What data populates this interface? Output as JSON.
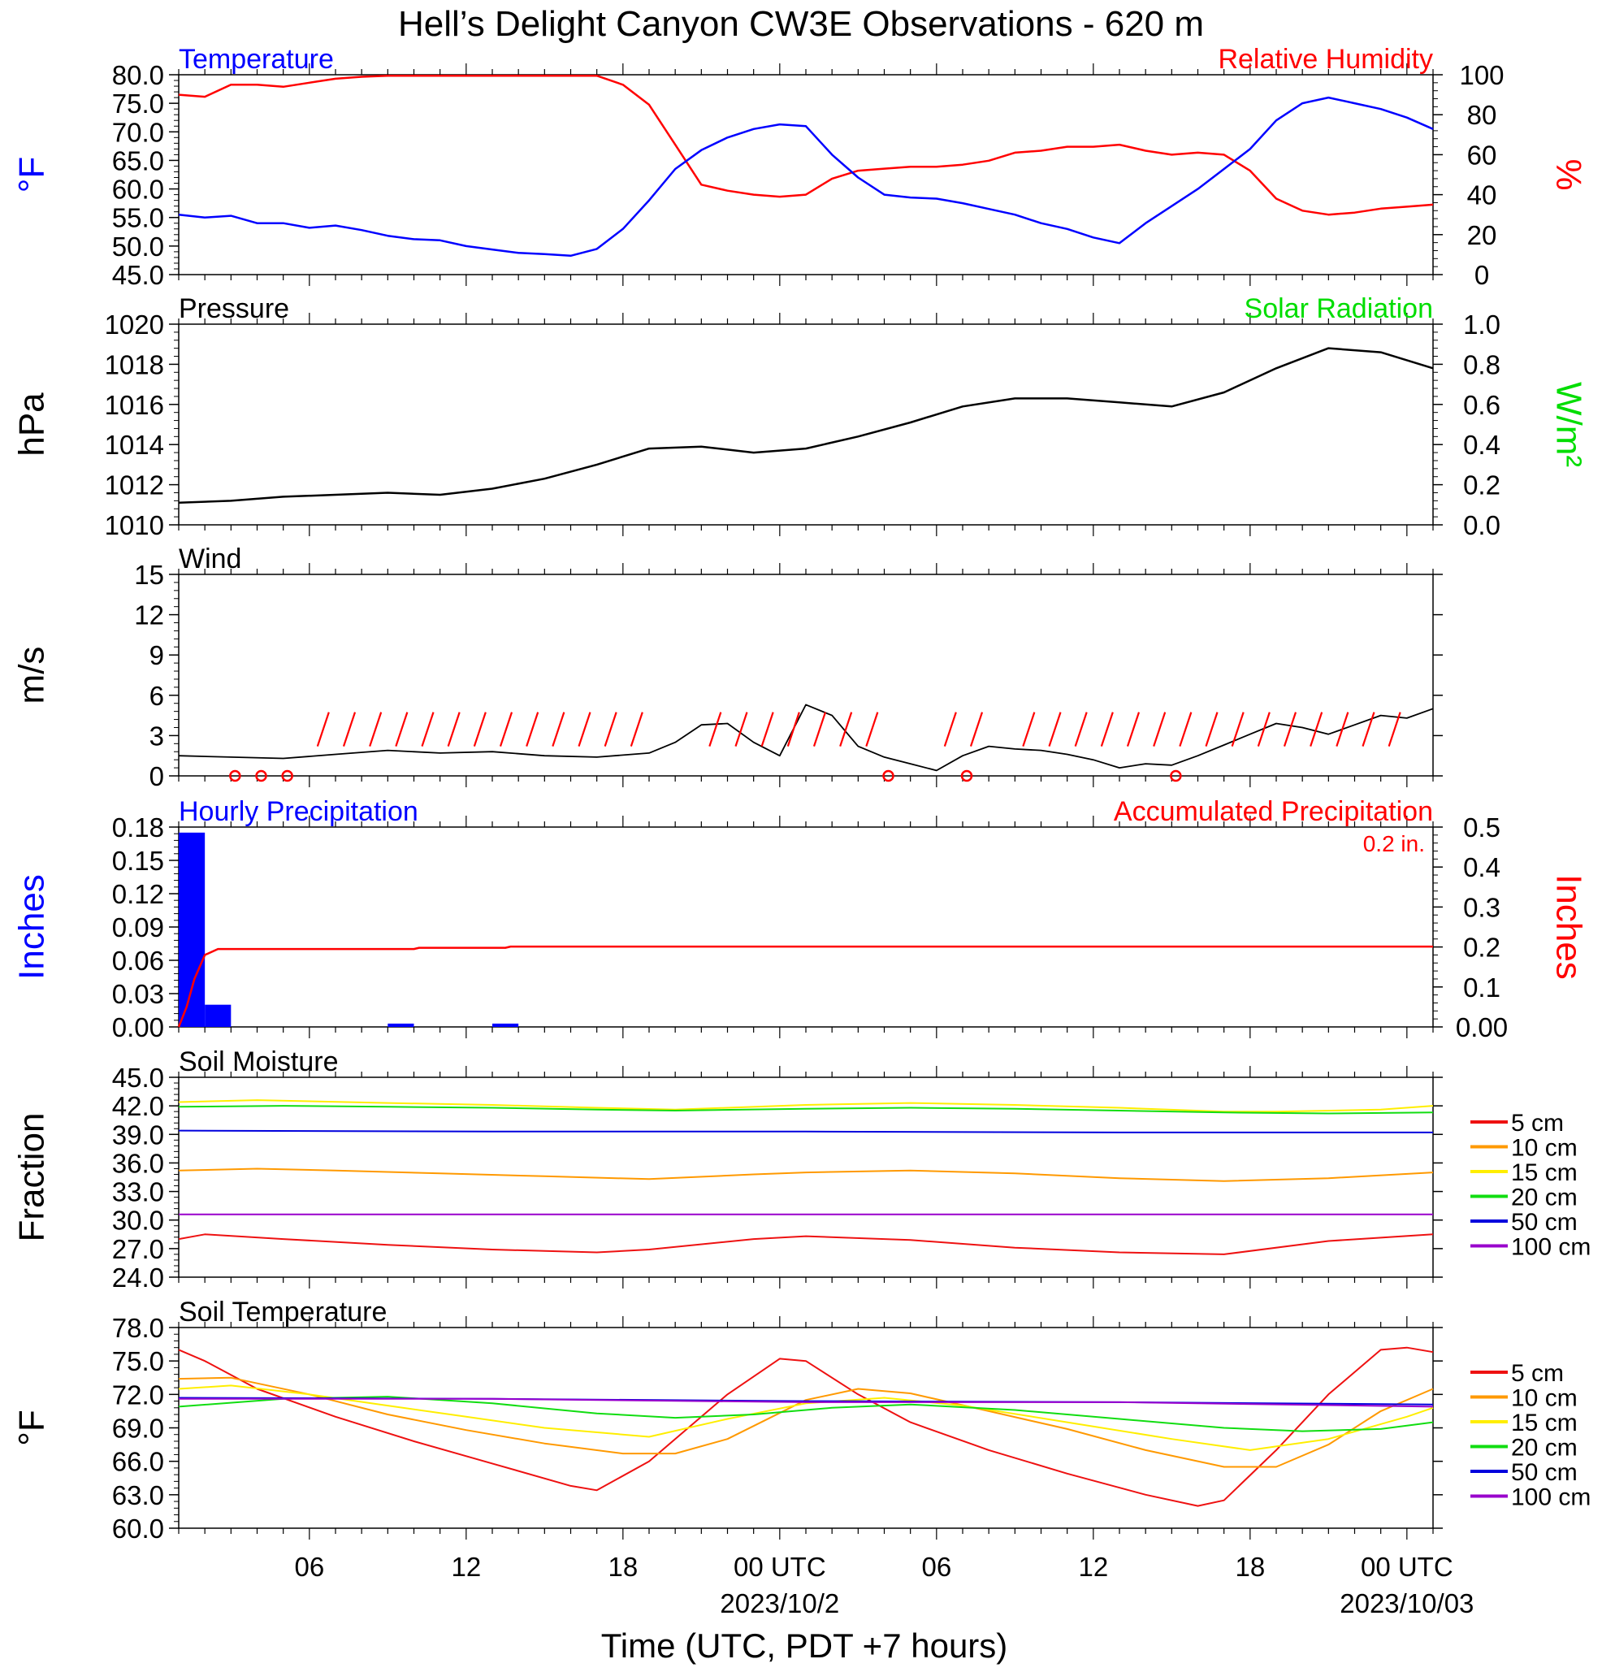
{
  "title": "Hell’s Delight Canyon CW3E Observations - 620 m",
  "x_axis": {
    "tick_labels": [
      "06",
      "12",
      "18",
      "00 UTC",
      "06",
      "12",
      "18",
      "00 UTC"
    ],
    "date_labels": [
      "2023/10/2",
      "2023/10/03"
    ],
    "xlabel": "Time (UTC, PDT +7 hours)"
  },
  "colors": {
    "temperature": "#0000ff",
    "humidity": "#ff0000",
    "pressure": "#000000",
    "solar": "#00dd00",
    "wind": "#000000",
    "barb": "#ff0000",
    "hourly_precip": "#0000ff",
    "accum_precip": "#ff0000",
    "5cm": "#ee1111",
    "10cm": "#ff9900",
    "15cm": "#ffee00",
    "20cm": "#11dd11",
    "50cm": "#0000dd",
    "100cm": "#9900cc"
  },
  "panels": {
    "temp_rh": {
      "left_title": "Temperature",
      "right_title": "Relative Humidity",
      "left_unit": "°F",
      "right_unit": "%",
      "left_ticks": [
        "80.0",
        "75.0",
        "70.0",
        "65.0",
        "60.0",
        "55.0",
        "50.0",
        "45.0"
      ],
      "right_ticks": [
        "100",
        "80",
        "60",
        "40",
        "20",
        "0"
      ]
    },
    "pressure": {
      "left_title": "Pressure",
      "right_title": "Solar Radiation",
      "left_unit": "hPa",
      "right_unit": "W/m²",
      "left_ticks": [
        "1020",
        "1018",
        "1016",
        "1014",
        "1012",
        "1010"
      ],
      "right_ticks": [
        "1.0",
        "0.8",
        "0.6",
        "0.4",
        "0.2",
        "0.0"
      ]
    },
    "wind": {
      "left_title": "Wind",
      "left_unit": "m/s",
      "left_ticks": [
        "15",
        "12",
        "9",
        "6",
        "3",
        "0"
      ]
    },
    "precip": {
      "left_title": "Hourly Precipitation",
      "right_title": "Accumulated Precipitation",
      "left_unit": "Inches",
      "right_unit": "Inches",
      "total_label": "0.2 in.",
      "left_ticks": [
        "0.18",
        "0.15",
        "0.12",
        "0.09",
        "0.06",
        "0.03",
        "0.00"
      ],
      "right_ticks": [
        "0.5",
        "0.4",
        "0.3",
        "0.2",
        "0.1",
        "0.00"
      ]
    },
    "soil_moisture": {
      "left_title": "Soil Moisture",
      "left_unit": "Fraction",
      "left_ticks": [
        "45.0",
        "42.0",
        "39.0",
        "36.0",
        "33.0",
        "30.0",
        "27.0",
        "24.0"
      ],
      "legend": [
        "5 cm",
        "10 cm",
        "15 cm",
        "20 cm",
        "50 cm",
        "100 cm"
      ]
    },
    "soil_temp": {
      "left_title": "Soil Temperature",
      "left_unit": "°F",
      "left_ticks": [
        "78.0",
        "75.0",
        "72.0",
        "69.0",
        "66.0",
        "63.0",
        "60.0"
      ],
      "legend": [
        "5 cm",
        "10 cm",
        "15 cm",
        "20 cm",
        "50 cm",
        "100 cm"
      ]
    }
  },
  "chart_data": [
    {
      "type": "line",
      "title": "Temperature",
      "x_hours_from_2023-10-01T01Z": [
        0,
        3,
        6,
        9,
        12,
        15,
        18,
        21,
        24,
        27,
        30,
        33,
        36,
        39,
        42,
        45,
        48
      ],
      "ylim": [
        45,
        80
      ],
      "ylabel": "°F",
      "series": [
        {
          "name": "Temperature",
          "x": [
            0,
            1,
            2,
            3,
            4,
            5,
            6,
            7,
            8,
            9,
            10,
            11,
            12,
            13,
            14,
            15,
            16,
            17,
            18,
            19,
            20,
            21,
            22,
            23,
            24,
            25,
            26,
            27,
            28,
            29,
            30,
            31,
            32,
            33,
            34,
            35,
            36,
            37,
            38,
            39,
            40,
            41,
            42,
            43,
            44,
            45,
            46,
            47,
            48
          ],
          "values": [
            55.5,
            55.0,
            55.3,
            54.0,
            54.0,
            53.2,
            53.6,
            52.8,
            51.8,
            51.2,
            51.0,
            50.0,
            49.4,
            48.8,
            48.6,
            48.3,
            49.5,
            53.0,
            58.0,
            63.5,
            66.8,
            69.0,
            70.5,
            71.3,
            71.0,
            66.0,
            62.0,
            59.0,
            58.5,
            58.3,
            57.5,
            56.5,
            55.5,
            54.0,
            53.0,
            51.5,
            50.5,
            54.0,
            57.0,
            60.0,
            63.5,
            67.0,
            72.0,
            75.0,
            76.0,
            75.0,
            74.0,
            72.5,
            70.5
          ]
        }
      ]
    },
    {
      "type": "line",
      "title": "Relative Humidity",
      "ylim": [
        0,
        100
      ],
      "ylabel": "%",
      "series": [
        {
          "name": "Relative Humidity",
          "x": [
            0,
            1,
            2,
            3,
            4,
            5,
            6,
            7,
            8,
            9,
            10,
            11,
            12,
            13,
            14,
            15,
            16,
            17,
            18,
            19,
            20,
            21,
            22,
            23,
            24,
            25,
            26,
            27,
            28,
            29,
            30,
            31,
            32,
            33,
            34,
            35,
            36,
            37,
            38,
            39,
            40,
            41,
            42,
            43,
            44,
            45,
            46,
            47,
            48
          ],
          "values": [
            90,
            89,
            95,
            95,
            94,
            96,
            98,
            99,
            99.5,
            99.5,
            99.5,
            99.5,
            99.5,
            99.5,
            99.5,
            99.5,
            99.5,
            95,
            85,
            65,
            45,
            42,
            40,
            39,
            40,
            48,
            52,
            53,
            54,
            54,
            55,
            57,
            61,
            62,
            64,
            64,
            65,
            62,
            60,
            61,
            60,
            52,
            38,
            32,
            30,
            31,
            33,
            34,
            35
          ]
        }
      ]
    },
    {
      "type": "line",
      "title": "Pressure",
      "ylim": [
        1010,
        1020
      ],
      "ylabel": "hPa",
      "series": [
        {
          "name": "Pressure",
          "x": [
            0,
            2,
            4,
            6,
            8,
            10,
            12,
            14,
            16,
            18,
            20,
            22,
            24,
            26,
            28,
            30,
            32,
            34,
            36,
            38,
            40,
            42,
            44,
            46,
            48
          ],
          "values": [
            1011.1,
            1011.2,
            1011.4,
            1011.5,
            1011.6,
            1011.5,
            1011.8,
            1012.3,
            1013.0,
            1013.8,
            1013.9,
            1013.6,
            1013.8,
            1014.4,
            1015.1,
            1015.9,
            1016.3,
            1016.3,
            1016.1,
            1015.9,
            1016.6,
            1017.8,
            1018.8,
            1018.6,
            1017.8
          ]
        }
      ]
    },
    {
      "type": "line",
      "title": "Wind",
      "ylim": [
        0,
        15
      ],
      "ylabel": "m/s",
      "series": [
        {
          "name": "Wind speed",
          "x": [
            0,
            2,
            4,
            6,
            8,
            10,
            12,
            14,
            16,
            18,
            19,
            20,
            21,
            22,
            23,
            24,
            25,
            26,
            27,
            28,
            29,
            30,
            31,
            32,
            33,
            34,
            35,
            36,
            37,
            38,
            39,
            40,
            41,
            42,
            43,
            44,
            45,
            46,
            47,
            48
          ],
          "values": [
            1.5,
            1.4,
            1.3,
            1.6,
            1.9,
            1.7,
            1.8,
            1.5,
            1.4,
            1.7,
            2.5,
            3.8,
            3.9,
            2.5,
            1.5,
            5.3,
            4.5,
            2.2,
            1.4,
            0.9,
            0.4,
            1.5,
            2.2,
            2.0,
            1.9,
            1.6,
            1.2,
            0.6,
            0.9,
            0.8,
            1.5,
            2.3,
            3.1,
            3.9,
            3.6,
            3.1,
            3.8,
            4.5,
            4.3,
            5.0
          ]
        }
      ]
    },
    {
      "type": "bar",
      "title": "Hourly Precipitation",
      "ylim": [
        0,
        0.18
      ],
      "ylabel": "Inches",
      "series": [
        {
          "name": "Hourly Precipitation",
          "x": [
            0,
            1,
            2,
            3,
            4,
            5,
            6,
            7,
            8,
            9,
            10,
            11,
            12,
            13
          ],
          "values": [
            0.175,
            0.02,
            0,
            0,
            0,
            0,
            0,
            0,
            0.003,
            0,
            0,
            0,
            0.003,
            0
          ]
        }
      ]
    },
    {
      "type": "line",
      "title": "Accumulated Precipitation",
      "ylim": [
        0,
        0.5
      ],
      "ylabel": "Inches",
      "series": [
        {
          "name": "Accumulated Precipitation",
          "x": [
            0,
            0.3,
            0.6,
            1.0,
            1.5,
            2.0,
            9.0,
            9.2,
            12.5,
            12.7,
            48
          ],
          "values": [
            0,
            0.05,
            0.12,
            0.18,
            0.195,
            0.195,
            0.195,
            0.198,
            0.198,
            0.201,
            0.201
          ]
        }
      ]
    },
    {
      "type": "line",
      "title": "Soil Moisture",
      "ylim": [
        24,
        45
      ],
      "ylabel": "Fraction",
      "series": [
        {
          "name": "5 cm",
          "x": [
            0,
            1,
            4,
            8,
            12,
            16,
            18,
            22,
            24,
            28,
            32,
            36,
            40,
            44,
            48
          ],
          "values": [
            28.0,
            28.5,
            28.0,
            27.4,
            26.9,
            26.6,
            26.9,
            28.0,
            28.3,
            27.9,
            27.1,
            26.6,
            26.4,
            27.8,
            28.5
          ]
        },
        {
          "name": "10 cm",
          "x": [
            0,
            3,
            6,
            10,
            14,
            18,
            22,
            24,
            28,
            32,
            36,
            40,
            44,
            48
          ],
          "values": [
            35.2,
            35.4,
            35.2,
            34.9,
            34.6,
            34.3,
            34.8,
            35.0,
            35.2,
            34.9,
            34.4,
            34.1,
            34.4,
            35.0
          ]
        },
        {
          "name": "15 cm",
          "x": [
            0,
            3,
            8,
            12,
            16,
            19,
            24,
            28,
            32,
            36,
            40,
            42,
            46,
            48
          ],
          "values": [
            42.4,
            42.6,
            42.3,
            42.1,
            41.8,
            41.6,
            42.1,
            42.3,
            42.1,
            41.8,
            41.4,
            41.4,
            41.6,
            42.0
          ]
        },
        {
          "name": "20 cm",
          "x": [
            0,
            4,
            8,
            12,
            16,
            19,
            24,
            28,
            32,
            36,
            40,
            44,
            48
          ],
          "values": [
            41.9,
            42.0,
            41.9,
            41.8,
            41.6,
            41.5,
            41.7,
            41.8,
            41.7,
            41.5,
            41.3,
            41.2,
            41.3
          ]
        },
        {
          "name": "50 cm",
          "x": [
            0,
            12,
            24,
            36,
            48
          ],
          "values": [
            39.4,
            39.3,
            39.3,
            39.2,
            39.2
          ]
        },
        {
          "name": "100 cm",
          "x": [
            0,
            12,
            24,
            36,
            48
          ],
          "values": [
            30.6,
            30.6,
            30.6,
            30.6,
            30.6
          ]
        }
      ]
    },
    {
      "type": "line",
      "title": "Soil Temperature",
      "ylim": [
        60,
        78
      ],
      "ylabel": "°F",
      "series": [
        {
          "name": "5 cm",
          "x": [
            0,
            1,
            3,
            6,
            9,
            12,
            15,
            16,
            18,
            21,
            23,
            24,
            26,
            28,
            31,
            34,
            37,
            39,
            40,
            42,
            44,
            46,
            47,
            48
          ],
          "values": [
            76.0,
            75.0,
            72.5,
            70.0,
            67.8,
            65.8,
            63.8,
            63.4,
            66.0,
            72.0,
            75.2,
            75.0,
            72.0,
            69.5,
            67.0,
            64.9,
            63.0,
            62.0,
            62.5,
            67.0,
            72.0,
            76.0,
            76.2,
            75.8
          ]
        },
        {
          "name": "10 cm",
          "x": [
            0,
            2,
            5,
            8,
            11,
            14,
            17,
            19,
            21,
            24,
            26,
            28,
            31,
            34,
            37,
            40,
            42,
            44,
            46,
            48
          ],
          "values": [
            73.4,
            73.5,
            72.0,
            70.2,
            68.8,
            67.6,
            66.7,
            66.7,
            68.0,
            71.5,
            72.5,
            72.1,
            70.5,
            68.9,
            67.0,
            65.5,
            65.5,
            67.5,
            70.5,
            72.5
          ]
        },
        {
          "name": "15 cm",
          "x": [
            0,
            2,
            5,
            8,
            11,
            14,
            18,
            21,
            24,
            27,
            30,
            34,
            38,
            41,
            44,
            47,
            48
          ],
          "values": [
            72.5,
            72.8,
            72.0,
            71.0,
            70.0,
            69.0,
            68.2,
            69.8,
            71.2,
            71.7,
            71.0,
            69.5,
            68.0,
            67.0,
            68.0,
            70.0,
            70.8
          ]
        },
        {
          "name": "20 cm",
          "x": [
            0,
            4,
            8,
            12,
            16,
            19,
            22,
            25,
            28,
            32,
            36,
            40,
            43,
            46,
            48
          ],
          "values": [
            70.9,
            71.6,
            71.8,
            71.2,
            70.3,
            69.9,
            70.2,
            70.8,
            71.1,
            70.6,
            69.8,
            69.0,
            68.7,
            68.9,
            69.5
          ]
        },
        {
          "name": "50 cm",
          "x": [
            0,
            12,
            24,
            36,
            48
          ],
          "values": [
            71.7,
            71.6,
            71.4,
            71.3,
            71.1
          ]
        },
        {
          "name": "100 cm",
          "x": [
            0,
            12,
            24,
            36,
            48
          ],
          "values": [
            71.6,
            71.6,
            71.3,
            71.3,
            70.9
          ]
        }
      ]
    }
  ]
}
